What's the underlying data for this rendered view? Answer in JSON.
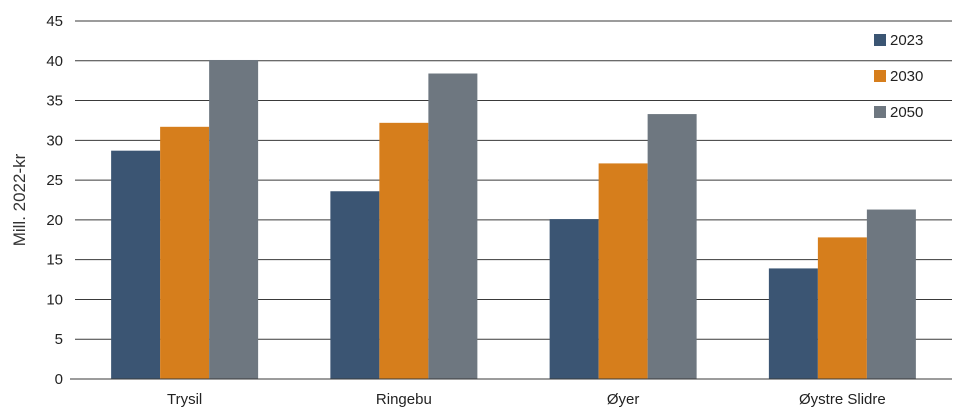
{
  "chart_data": {
    "type": "bar",
    "title": "",
    "xlabel": "",
    "ylabel": "Mill. 2022-kr",
    "ylim": [
      0,
      45
    ],
    "yticks": [
      0,
      5,
      10,
      15,
      20,
      25,
      30,
      35,
      40,
      45
    ],
    "grid": true,
    "legend_position": "top-right",
    "categories": [
      "Trysil",
      "Ringebu",
      "Øyer",
      "Øystre Slidre"
    ],
    "series": [
      {
        "name": "2023",
        "color": "#3b5573",
        "values": [
          28.7,
          23.6,
          20.1,
          13.9
        ]
      },
      {
        "name": "2030",
        "color": "#d67e1c",
        "values": [
          31.7,
          32.2,
          27.1,
          17.8
        ]
      },
      {
        "name": "2050",
        "color": "#6e7780",
        "values": [
          40.1,
          38.4,
          33.3,
          21.3
        ]
      }
    ]
  }
}
